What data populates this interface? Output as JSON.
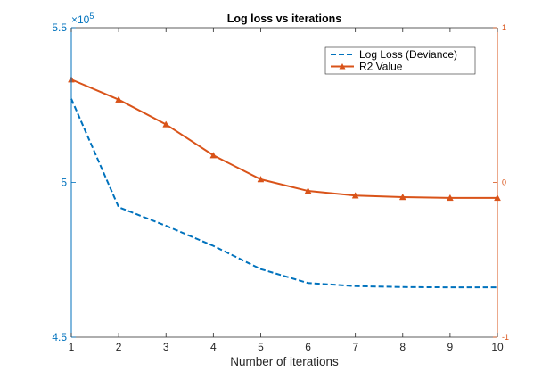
{
  "chart_data": {
    "type": "line",
    "title": "Log loss vs iterations",
    "xlabel": "Number of iterations",
    "x": [
      1,
      2,
      3,
      4,
      5,
      6,
      7,
      8,
      9,
      10
    ],
    "xlim": [
      1,
      10
    ],
    "x_ticks": [
      "1",
      "2",
      "3",
      "4",
      "5",
      "6",
      "7",
      "8",
      "9",
      "10"
    ],
    "left_axis": {
      "ylim": [
        4.5,
        5.5
      ],
      "ticks": [
        4.5,
        5,
        5.5
      ],
      "tick_labels": [
        "4.5",
        "5",
        "5.5"
      ],
      "exponent_base": "×10",
      "exponent_power": "5",
      "color": "#0072BD"
    },
    "right_axis": {
      "ylim": [
        -1,
        1
      ],
      "ticks": [
        -1,
        0,
        1
      ],
      "tick_labels": [
        "-1",
        "0",
        "1"
      ],
      "color": "#D95319"
    },
    "series": [
      {
        "name": "Log Loss (Deviance)",
        "axis": "left",
        "style": "dashed",
        "color": "#0072BD",
        "values": [
          5.27,
          4.92,
          4.86,
          4.795,
          4.72,
          4.675,
          4.665,
          4.662,
          4.661,
          4.661
        ]
      },
      {
        "name": "R2 Value",
        "axis": "right",
        "style": "solid",
        "marker": "triangle",
        "color": "#D95319",
        "values": [
          0.665,
          0.535,
          0.375,
          0.175,
          0.02,
          -0.055,
          -0.085,
          -0.095,
          -0.1,
          -0.1
        ]
      }
    ],
    "legend_position": "top-right",
    "grid": false
  }
}
